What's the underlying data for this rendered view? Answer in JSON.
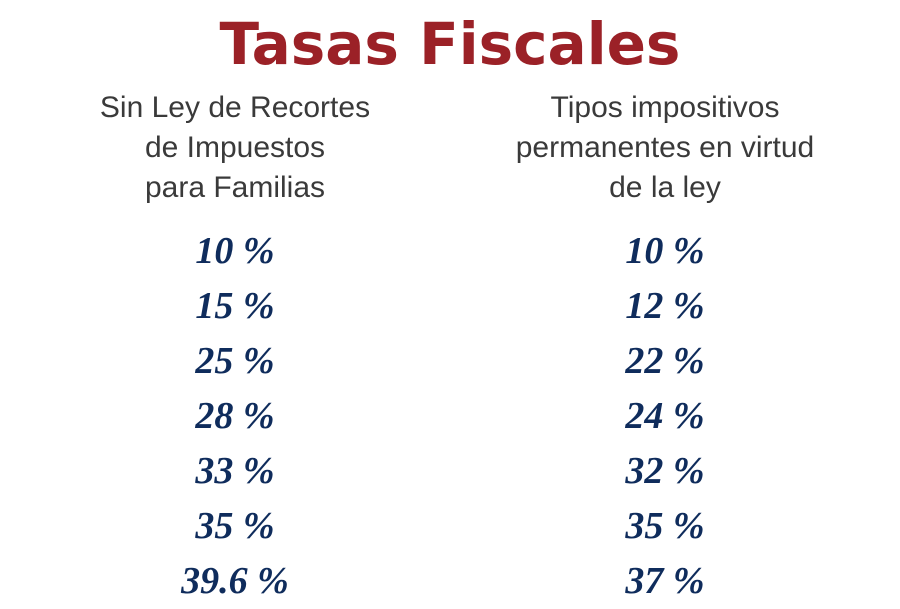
{
  "title": "Tasas Fiscales",
  "columns": [
    {
      "heading_lines": [
        "Sin Ley de Recortes",
        "de Impuestos",
        "para Familias"
      ],
      "rates": [
        "10 %",
        "15 %",
        "25 %",
        "28 %",
        "33 %",
        "35 %",
        "39.6 %"
      ]
    },
    {
      "heading_lines": [
        "Tipos impositivos",
        "permanentes en virtud",
        "de la ley"
      ],
      "rates": [
        "10 %",
        "12 %",
        "22 %",
        "24 %",
        "32 %",
        "35 %",
        "37 %"
      ]
    }
  ],
  "colors": {
    "title": "#9b2127",
    "heading": "#3a3a3a",
    "rates": "#0f2c5c"
  }
}
